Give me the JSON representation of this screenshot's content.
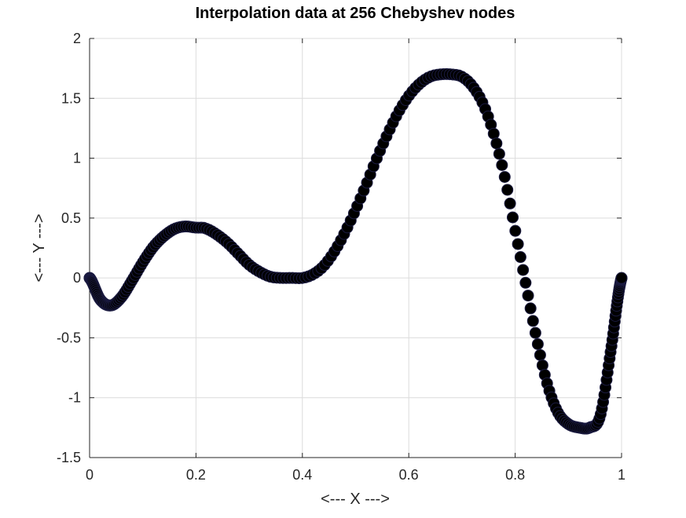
{
  "chart_data": {
    "type": "scatter",
    "title": "Interpolation data at 256 Chebyshev nodes",
    "xlabel": "<--- X --->",
    "ylabel": "<--- Y --->",
    "xlim": [
      0,
      1
    ],
    "ylim": [
      -1.5,
      2
    ],
    "xticks": [
      0,
      0.2,
      0.4,
      0.6,
      0.8,
      1
    ],
    "xtick_labels": [
      "0",
      "0.2",
      "0.4",
      "0.6",
      "0.8",
      "1"
    ],
    "yticks": [
      -1.5,
      -1,
      -0.5,
      0,
      0.5,
      1,
      1.5,
      2
    ],
    "ytick_labels": [
      "-1.5",
      "-1",
      "-0.5",
      "0",
      "0.5",
      "1",
      "1.5",
      "2"
    ],
    "grid": true,
    "marker_color": "#000000",
    "node_count": 256,
    "curve_samples": {
      "x": [
        0,
        0.02,
        0.04,
        0.06,
        0.08,
        0.1,
        0.12,
        0.14,
        0.16,
        0.18,
        0.2,
        0.21,
        0.22,
        0.24,
        0.26,
        0.28,
        0.3,
        0.32,
        0.34,
        0.36,
        0.38,
        0.4,
        0.42,
        0.44,
        0.46,
        0.48,
        0.5,
        0.52,
        0.54,
        0.56,
        0.58,
        0.6,
        0.62,
        0.64,
        0.66,
        0.68,
        0.7,
        0.72,
        0.74,
        0.76,
        0.78,
        0.8,
        0.82,
        0.84,
        0.86,
        0.88,
        0.9,
        0.92,
        0.94,
        0.96,
        0.98,
        1
      ],
      "y": [
        0,
        -0.18,
        -0.23,
        -0.16,
        -0.02,
        0.13,
        0.26,
        0.35,
        0.41,
        0.43,
        0.42,
        0.42,
        0.41,
        0.36,
        0.29,
        0.2,
        0.11,
        0.05,
        0.01,
        0.0,
        0.0,
        0.0,
        0.03,
        0.1,
        0.22,
        0.38,
        0.57,
        0.78,
        1.0,
        1.2,
        1.38,
        1.52,
        1.62,
        1.68,
        1.7,
        1.7,
        1.68,
        1.6,
        1.45,
        1.2,
        0.85,
        0.4,
        -0.05,
        -0.5,
        -0.88,
        -1.12,
        -1.22,
        -1.25,
        -1.25,
        -1.15,
        -0.6,
        0.0
      ]
    }
  }
}
